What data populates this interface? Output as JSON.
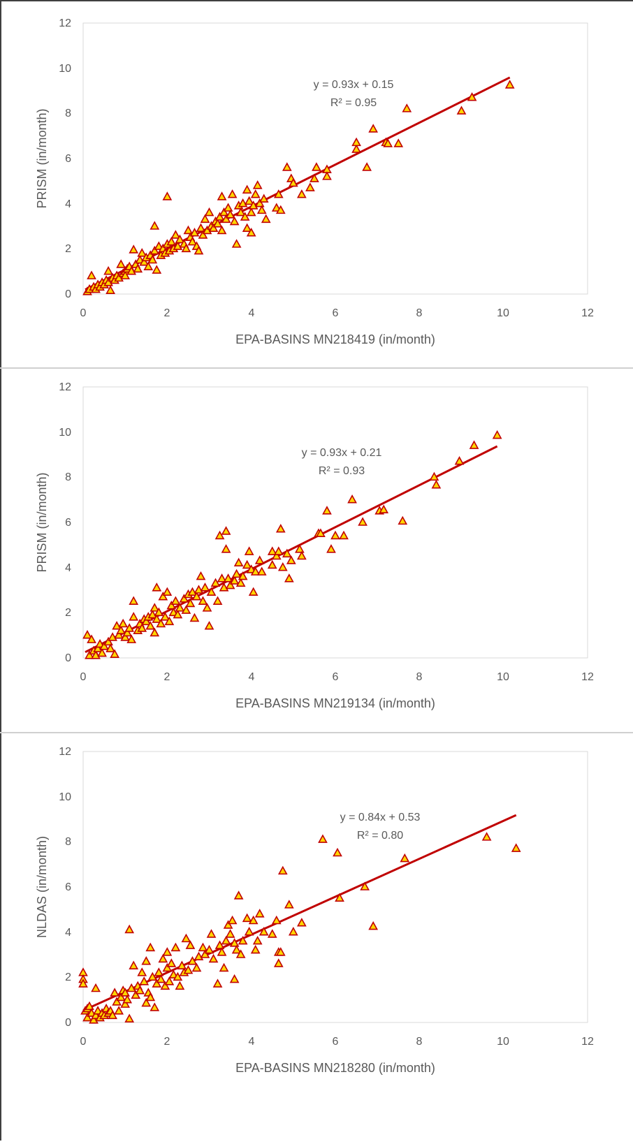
{
  "colors": {
    "frame": "#404040",
    "separator": "#d0d0d0",
    "plot_border": "#d9d9d9",
    "tick_text": "#595959",
    "trendline": "#c00000",
    "marker_fill": "#ffd700",
    "marker_stroke": "#c00000"
  },
  "chart_data": [
    {
      "type": "scatter",
      "xlabel": "EPA-BASINS MN218419 (in/month)",
      "ylabel": "PRISM (in/month)",
      "xlim": [
        0,
        12
      ],
      "ylim": [
        0,
        12
      ],
      "x_ticks": [
        "0",
        "2",
        "4",
        "6",
        "8",
        "10",
        "12"
      ],
      "y_ticks": [
        "0",
        "2",
        "4",
        "6",
        "8",
        "10",
        "12"
      ],
      "grid": false,
      "legend": "none",
      "equation": "y = 0.93x + 0.15",
      "r_squared": "R² = 0.95",
      "trendline": {
        "slope": 0.93,
        "intercept": 0.15,
        "x_range": [
          0.05,
          10.15
        ]
      },
      "points": [
        [
          0.1,
          0.1
        ],
        [
          0.15,
          0.2
        ],
        [
          0.2,
          0.8
        ],
        [
          0.25,
          0.3
        ],
        [
          0.3,
          0.2
        ],
        [
          0.35,
          0.4
        ],
        [
          0.4,
          0.3
        ],
        [
          0.45,
          0.5
        ],
        [
          0.5,
          0.4
        ],
        [
          0.55,
          0.6
        ],
        [
          0.6,
          0.5
        ],
        [
          0.6,
          1.0
        ],
        [
          0.65,
          0.15
        ],
        [
          0.7,
          0.7
        ],
        [
          0.75,
          0.6
        ],
        [
          0.8,
          0.8
        ],
        [
          0.85,
          0.7
        ],
        [
          0.9,
          1.3
        ],
        [
          0.95,
          0.9
        ],
        [
          1.0,
          1.0
        ],
        [
          1.0,
          0.8
        ],
        [
          1.05,
          1.1
        ],
        [
          1.1,
          1.2
        ],
        [
          1.15,
          1.0
        ],
        [
          1.2,
          1.95
        ],
        [
          1.25,
          1.3
        ],
        [
          1.3,
          1.1
        ],
        [
          1.35,
          1.5
        ],
        [
          1.4,
          1.8
        ],
        [
          1.45,
          1.4
        ],
        [
          1.5,
          1.6
        ],
        [
          1.55,
          1.2
        ],
        [
          1.6,
          1.7
        ],
        [
          1.65,
          1.5
        ],
        [
          1.7,
          3.0
        ],
        [
          1.7,
          1.9
        ],
        [
          1.75,
          1.05
        ],
        [
          1.8,
          2.1
        ],
        [
          1.85,
          1.7
        ],
        [
          1.9,
          2.0
        ],
        [
          1.95,
          1.8
        ],
        [
          2.0,
          2.2
        ],
        [
          2.0,
          4.3
        ],
        [
          2.05,
          1.9
        ],
        [
          2.1,
          2.3
        ],
        [
          2.15,
          2.0
        ],
        [
          2.2,
          2.6
        ],
        [
          2.25,
          2.1
        ],
        [
          2.3,
          2.4
        ],
        [
          2.4,
          2.2
        ],
        [
          2.45,
          2.0
        ],
        [
          2.5,
          2.8
        ],
        [
          2.55,
          2.5
        ],
        [
          2.6,
          2.3
        ],
        [
          2.65,
          2.7
        ],
        [
          2.7,
          2.1
        ],
        [
          2.75,
          1.9
        ],
        [
          2.8,
          2.9
        ],
        [
          2.85,
          2.6
        ],
        [
          2.9,
          3.3
        ],
        [
          2.95,
          2.8
        ],
        [
          3.0,
          3.6
        ],
        [
          3.05,
          3.0
        ],
        [
          3.1,
          2.9
        ],
        [
          3.15,
          3.2
        ],
        [
          3.2,
          3.1
        ],
        [
          3.25,
          3.4
        ],
        [
          3.3,
          4.3
        ],
        [
          3.3,
          2.8
        ],
        [
          3.35,
          3.6
        ],
        [
          3.4,
          3.3
        ],
        [
          3.45,
          3.8
        ],
        [
          3.5,
          3.5
        ],
        [
          3.55,
          4.4
        ],
        [
          3.6,
          3.2
        ],
        [
          3.65,
          2.2
        ],
        [
          3.7,
          3.9
        ],
        [
          3.75,
          3.6
        ],
        [
          3.8,
          4.0
        ],
        [
          3.85,
          3.4
        ],
        [
          3.9,
          4.6
        ],
        [
          3.9,
          2.9
        ],
        [
          3.95,
          4.1
        ],
        [
          4.0,
          2.7
        ],
        [
          4.0,
          3.6
        ],
        [
          4.05,
          3.9
        ],
        [
          4.1,
          4.4
        ],
        [
          4.15,
          4.8
        ],
        [
          4.2,
          4.0
        ],
        [
          4.25,
          3.7
        ],
        [
          4.3,
          4.2
        ],
        [
          4.35,
          3.3
        ],
        [
          4.6,
          3.8
        ],
        [
          4.65,
          4.4
        ],
        [
          4.7,
          3.7
        ],
        [
          4.85,
          5.6
        ],
        [
          4.95,
          5.1
        ],
        [
          5.0,
          4.9
        ],
        [
          5.2,
          4.4
        ],
        [
          5.4,
          4.7
        ],
        [
          5.5,
          5.1
        ],
        [
          5.55,
          5.6
        ],
        [
          5.8,
          5.5
        ],
        [
          5.8,
          5.2
        ],
        [
          6.5,
          6.4
        ],
        [
          6.5,
          6.7
        ],
        [
          6.75,
          5.6
        ],
        [
          6.9,
          7.3
        ],
        [
          7.2,
          6.7
        ],
        [
          7.25,
          6.65
        ],
        [
          7.5,
          6.65
        ],
        [
          7.7,
          8.2
        ],
        [
          9.0,
          8.1
        ],
        [
          9.25,
          8.7
        ],
        [
          10.15,
          9.25
        ]
      ]
    },
    {
      "type": "scatter",
      "xlabel": "EPA-BASINS MN219134 (in/month)",
      "ylabel": "PRISM (in/month)",
      "xlim": [
        0,
        12
      ],
      "ylim": [
        0,
        12
      ],
      "x_ticks": [
        "0",
        "2",
        "4",
        "6",
        "8",
        "10",
        "12"
      ],
      "y_ticks": [
        "0",
        "2",
        "4",
        "6",
        "8",
        "10",
        "12"
      ],
      "grid": false,
      "legend": "none",
      "equation": "y = 0.93x + 0.21",
      "r_squared": "R² = 0.93",
      "trendline": {
        "slope": 0.93,
        "intercept": 0.21,
        "x_range": [
          0.05,
          9.85
        ]
      },
      "points": [
        [
          0.1,
          1.0
        ],
        [
          0.15,
          0.1
        ],
        [
          0.2,
          0.8
        ],
        [
          0.25,
          0.3
        ],
        [
          0.3,
          0.1
        ],
        [
          0.35,
          0.4
        ],
        [
          0.4,
          0.6
        ],
        [
          0.45,
          0.2
        ],
        [
          0.5,
          0.5
        ],
        [
          0.6,
          0.7
        ],
        [
          0.65,
          0.4
        ],
        [
          0.7,
          0.9
        ],
        [
          0.75,
          0.15
        ],
        [
          0.8,
          1.4
        ],
        [
          0.85,
          1.0
        ],
        [
          0.9,
          1.2
        ],
        [
          0.95,
          1.5
        ],
        [
          1.0,
          0.9
        ],
        [
          1.05,
          1.1
        ],
        [
          1.1,
          1.3
        ],
        [
          1.15,
          0.8
        ],
        [
          1.2,
          2.5
        ],
        [
          1.2,
          1.8
        ],
        [
          1.3,
          1.2
        ],
        [
          1.35,
          1.5
        ],
        [
          1.4,
          1.3
        ],
        [
          1.45,
          1.7
        ],
        [
          1.5,
          1.6
        ],
        [
          1.55,
          1.8
        ],
        [
          1.6,
          1.4
        ],
        [
          1.65,
          1.9
        ],
        [
          1.7,
          1.1
        ],
        [
          1.7,
          2.2
        ],
        [
          1.75,
          3.1
        ],
        [
          1.75,
          1.7
        ],
        [
          1.8,
          2.0
        ],
        [
          1.85,
          1.5
        ],
        [
          1.9,
          2.7
        ],
        [
          1.95,
          1.8
        ],
        [
          2.0,
          2.9
        ],
        [
          2.05,
          1.6
        ],
        [
          2.1,
          2.3
        ],
        [
          2.15,
          2.0
        ],
        [
          2.2,
          2.5
        ],
        [
          2.25,
          1.9
        ],
        [
          2.3,
          2.2
        ],
        [
          2.4,
          2.6
        ],
        [
          2.45,
          2.1
        ],
        [
          2.5,
          2.8
        ],
        [
          2.55,
          2.4
        ],
        [
          2.6,
          2.9
        ],
        [
          2.65,
          1.75
        ],
        [
          2.7,
          2.7
        ],
        [
          2.75,
          3.0
        ],
        [
          2.8,
          3.6
        ],
        [
          2.85,
          2.5
        ],
        [
          2.9,
          3.1
        ],
        [
          2.95,
          2.2
        ],
        [
          3.0,
          1.4
        ],
        [
          3.05,
          2.9
        ],
        [
          3.15,
          3.3
        ],
        [
          3.2,
          2.5
        ],
        [
          3.25,
          5.4
        ],
        [
          3.3,
          3.5
        ],
        [
          3.35,
          3.1
        ],
        [
          3.4,
          5.6
        ],
        [
          3.4,
          4.8
        ],
        [
          3.45,
          3.5
        ],
        [
          3.5,
          3.2
        ],
        [
          3.6,
          3.4
        ],
        [
          3.65,
          3.7
        ],
        [
          3.7,
          4.2
        ],
        [
          3.75,
          3.3
        ],
        [
          3.8,
          3.6
        ],
        [
          3.9,
          4.1
        ],
        [
          3.95,
          4.7
        ],
        [
          4.0,
          3.9
        ],
        [
          4.05,
          2.9
        ],
        [
          4.1,
          3.8
        ],
        [
          4.2,
          4.3
        ],
        [
          4.25,
          3.8
        ],
        [
          4.5,
          4.1
        ],
        [
          4.5,
          4.7
        ],
        [
          4.6,
          4.5
        ],
        [
          4.65,
          4.7
        ],
        [
          4.7,
          5.7
        ],
        [
          4.75,
          4.0
        ],
        [
          4.85,
          4.6
        ],
        [
          4.9,
          3.5
        ],
        [
          4.95,
          4.3
        ],
        [
          5.15,
          4.8
        ],
        [
          5.2,
          4.5
        ],
        [
          5.6,
          5.5
        ],
        [
          5.65,
          5.5
        ],
        [
          5.8,
          6.5
        ],
        [
          5.9,
          4.8
        ],
        [
          6.0,
          5.4
        ],
        [
          6.2,
          5.4
        ],
        [
          6.4,
          7.0
        ],
        [
          6.65,
          6.0
        ],
        [
          7.05,
          6.5
        ],
        [
          7.15,
          6.55
        ],
        [
          7.6,
          6.05
        ],
        [
          8.35,
          8.0
        ],
        [
          8.4,
          7.65
        ],
        [
          8.95,
          8.7
        ],
        [
          9.3,
          9.4
        ],
        [
          9.85,
          9.85
        ]
      ]
    },
    {
      "type": "scatter",
      "xlabel": "EPA-BASINS MN218280 (in/month)",
      "ylabel": "NLDAS (in/month)",
      "xlim": [
        0,
        12
      ],
      "ylim": [
        0,
        12
      ],
      "x_ticks": [
        "0",
        "2",
        "4",
        "6",
        "8",
        "10",
        "12"
      ],
      "y_ticks": [
        "0",
        "2",
        "4",
        "6",
        "8",
        "10",
        "12"
      ],
      "grid": false,
      "legend": "none",
      "equation": "y = 0.84x + 0.53",
      "r_squared": "R² = 0.80",
      "trendline": {
        "slope": 0.84,
        "intercept": 0.53,
        "x_range": [
          0.0,
          10.3
        ]
      },
      "points": [
        [
          0.0,
          2.2
        ],
        [
          0.0,
          1.9
        ],
        [
          0.0,
          1.7
        ],
        [
          0.05,
          0.5
        ],
        [
          0.1,
          0.6
        ],
        [
          0.1,
          0.2
        ],
        [
          0.15,
          0.7
        ],
        [
          0.2,
          0.4
        ],
        [
          0.25,
          0.1
        ],
        [
          0.3,
          0.3
        ],
        [
          0.3,
          1.5
        ],
        [
          0.35,
          0.5
        ],
        [
          0.4,
          0.2
        ],
        [
          0.45,
          0.4
        ],
        [
          0.5,
          0.3
        ],
        [
          0.55,
          0.6
        ],
        [
          0.6,
          0.4
        ],
        [
          0.65,
          0.5
        ],
        [
          0.7,
          0.3
        ],
        [
          0.75,
          1.3
        ],
        [
          0.8,
          0.9
        ],
        [
          0.85,
          0.5
        ],
        [
          0.9,
          1.1
        ],
        [
          0.95,
          1.4
        ],
        [
          1.0,
          0.8
        ],
        [
          1.0,
          1.3
        ],
        [
          1.05,
          1.0
        ],
        [
          1.1,
          4.1
        ],
        [
          1.1,
          0.15
        ],
        [
          1.15,
          1.5
        ],
        [
          1.2,
          2.5
        ],
        [
          1.25,
          1.2
        ],
        [
          1.3,
          1.6
        ],
        [
          1.35,
          1.4
        ],
        [
          1.4,
          2.2
        ],
        [
          1.45,
          1.8
        ],
        [
          1.5,
          0.85
        ],
        [
          1.5,
          2.7
        ],
        [
          1.55,
          1.3
        ],
        [
          1.6,
          3.3
        ],
        [
          1.6,
          1.1
        ],
        [
          1.65,
          2.0
        ],
        [
          1.7,
          0.65
        ],
        [
          1.75,
          1.7
        ],
        [
          1.8,
          2.2
        ],
        [
          1.85,
          1.9
        ],
        [
          1.9,
          2.8
        ],
        [
          1.95,
          1.6
        ],
        [
          2.0,
          3.1
        ],
        [
          2.0,
          2.4
        ],
        [
          2.05,
          1.8
        ],
        [
          2.1,
          2.6
        ],
        [
          2.15,
          2.1
        ],
        [
          2.2,
          3.3
        ],
        [
          2.25,
          2.0
        ],
        [
          2.3,
          1.6
        ],
        [
          2.35,
          2.5
        ],
        [
          2.4,
          2.2
        ],
        [
          2.45,
          3.7
        ],
        [
          2.5,
          2.3
        ],
        [
          2.55,
          3.4
        ],
        [
          2.6,
          2.7
        ],
        [
          2.7,
          2.4
        ],
        [
          2.75,
          2.9
        ],
        [
          2.85,
          3.3
        ],
        [
          2.9,
          3.0
        ],
        [
          3.0,
          3.2
        ],
        [
          3.05,
          3.9
        ],
        [
          3.1,
          2.8
        ],
        [
          3.2,
          1.7
        ],
        [
          3.25,
          3.4
        ],
        [
          3.3,
          3.1
        ],
        [
          3.35,
          2.4
        ],
        [
          3.4,
          3.6
        ],
        [
          3.45,
          4.3
        ],
        [
          3.5,
          3.9
        ],
        [
          3.55,
          4.5
        ],
        [
          3.6,
          1.9
        ],
        [
          3.6,
          3.5
        ],
        [
          3.65,
          3.2
        ],
        [
          3.7,
          5.6
        ],
        [
          3.75,
          3.0
        ],
        [
          3.8,
          3.6
        ],
        [
          3.9,
          4.6
        ],
        [
          3.95,
          4.0
        ],
        [
          4.05,
          4.5
        ],
        [
          4.1,
          3.2
        ],
        [
          4.15,
          3.6
        ],
        [
          4.2,
          4.8
        ],
        [
          4.3,
          4.0
        ],
        [
          4.5,
          3.9
        ],
        [
          4.6,
          4.5
        ],
        [
          4.65,
          2.6
        ],
        [
          4.65,
          3.1
        ],
        [
          4.7,
          3.1
        ],
        [
          4.75,
          6.7
        ],
        [
          4.9,
          5.2
        ],
        [
          5.0,
          4.0
        ],
        [
          5.2,
          4.4
        ],
        [
          5.7,
          8.1
        ],
        [
          6.05,
          7.5
        ],
        [
          6.1,
          5.5
        ],
        [
          6.7,
          6.0
        ],
        [
          6.9,
          4.25
        ],
        [
          7.65,
          7.25
        ],
        [
          9.6,
          8.2
        ],
        [
          10.3,
          7.7
        ]
      ]
    }
  ]
}
